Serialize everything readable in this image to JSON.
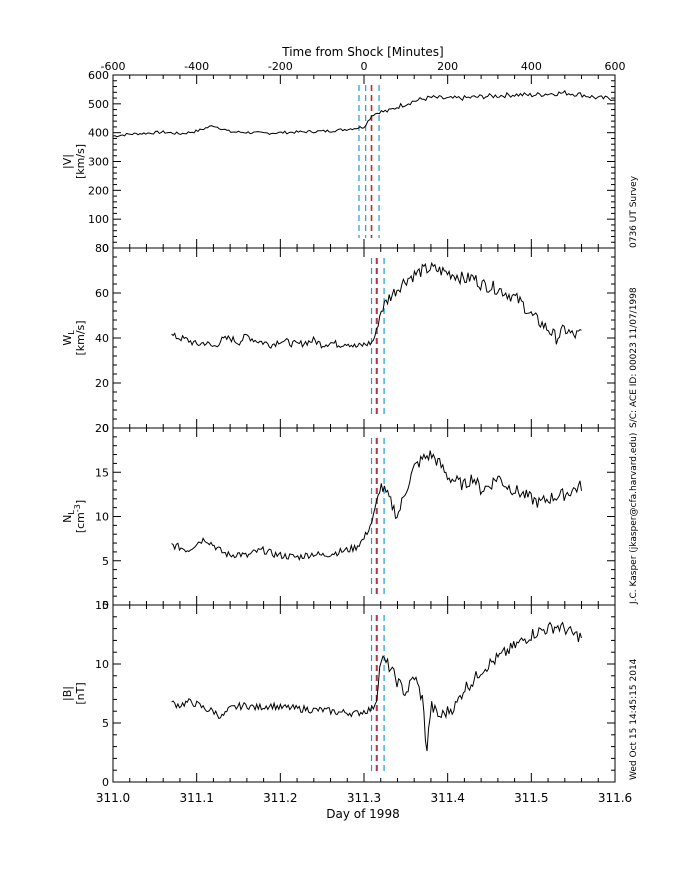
{
  "figure": {
    "top_axis_label": "Time from Shock [Minutes]",
    "bottom_axis_label": "Day of 1998",
    "right_annotation_1": "0736 UT Survey",
    "right_annotation_2": "S/C: ACE ID: 00023 11/07/1998",
    "right_annotation_3": "J.C. Kasper (jkasper@cfa.harvard.edu)",
    "right_annotation_4": "Wed Oct 15 14:45:15 2014"
  },
  "chart_data": [
    {
      "type": "line",
      "panel": "speed",
      "ylabel_line1": "|V|",
      "ylabel_line2": "[km/s]",
      "xlim": [
        311.0,
        311.6
      ],
      "ylim": [
        0,
        600
      ],
      "yticks": [
        0,
        100,
        200,
        300,
        400,
        500,
        600
      ],
      "top_ticks": [
        -600,
        -400,
        -200,
        0,
        200,
        400,
        600
      ],
      "vlines": [
        {
          "x": 311.294,
          "color": "#1f9bd7"
        },
        {
          "x": 311.302,
          "color": "#1f9bd7"
        },
        {
          "x": 311.309,
          "color": "#d42020"
        },
        {
          "x": 311.318,
          "color": "#1f9bd7"
        }
      ],
      "x": [
        311.0,
        311.02,
        311.04,
        311.06,
        311.08,
        311.1,
        311.12,
        311.14,
        311.16,
        311.18,
        311.2,
        311.22,
        311.24,
        311.26,
        311.28,
        311.3,
        311.31,
        311.32,
        311.33,
        311.34,
        311.36,
        311.38,
        311.4,
        311.42,
        311.44,
        311.46,
        311.48,
        311.5,
        311.52,
        311.54,
        311.56,
        311.58,
        311.6
      ],
      "values": [
        388,
        395,
        398,
        402,
        396,
        405,
        425,
        403,
        401,
        398,
        400,
        402,
        404,
        406,
        412,
        420,
        462,
        472,
        475,
        490,
        510,
        522,
        518,
        520,
        525,
        528,
        532,
        530,
        535,
        538,
        532,
        520,
        518
      ]
    },
    {
      "type": "line",
      "panel": "thermal",
      "ylabel_line1": "W",
      "ylabel_sub": "L",
      "ylabel_line2": "[km/s]",
      "xlim": [
        311.0,
        311.6
      ],
      "ylim": [
        0,
        80
      ],
      "yticks": [
        0,
        20,
        40,
        60,
        80
      ],
      "vlines": [
        {
          "x": 311.309,
          "color": "#1f9bd7"
        },
        {
          "x": 311.315,
          "color": "#d42020"
        },
        {
          "x": 311.316,
          "color": "#1f9bd7"
        },
        {
          "x": 311.324,
          "color": "#1f9bd7"
        }
      ],
      "x": [
        311.07,
        311.08,
        311.09,
        311.1,
        311.11,
        311.12,
        311.13,
        311.14,
        311.15,
        311.16,
        311.17,
        311.18,
        311.19,
        311.2,
        311.21,
        311.22,
        311.23,
        311.24,
        311.25,
        311.26,
        311.27,
        311.28,
        311.29,
        311.3,
        311.31,
        311.315,
        311.32,
        311.33,
        311.34,
        311.35,
        311.36,
        311.37,
        311.38,
        311.39,
        311.4,
        311.41,
        311.42,
        311.43,
        311.44,
        311.45,
        311.46,
        311.47,
        311.48,
        311.49,
        311.5,
        311.51,
        311.52,
        311.53,
        311.54,
        311.55,
        311.56
      ],
      "values": [
        41,
        40,
        39,
        37,
        38,
        36,
        39,
        40,
        38,
        41,
        39,
        38,
        37,
        39,
        38,
        37,
        38,
        39,
        37,
        38,
        37,
        38,
        36,
        37,
        38,
        43,
        52,
        58,
        62,
        66,
        68,
        70,
        71,
        70,
        69,
        68,
        66,
        67,
        64,
        63,
        62,
        60,
        58,
        55,
        50,
        47,
        44,
        40,
        44,
        41,
        42
      ]
    },
    {
      "type": "line",
      "panel": "density",
      "ylabel_line1": "N",
      "ylabel_sub": "L",
      "ylabel_line2": "[cm",
      "ylabel_sup": "-3",
      "ylabel_line2_end": "]",
      "xlim": [
        311.0,
        311.6
      ],
      "ylim": [
        0,
        20
      ],
      "yticks": [
        0,
        5,
        10,
        15,
        20
      ],
      "vlines": [
        {
          "x": 311.309,
          "color": "#1f9bd7"
        },
        {
          "x": 311.315,
          "color": "#d42020"
        },
        {
          "x": 311.316,
          "color": "#1f9bd7"
        },
        {
          "x": 311.324,
          "color": "#1f9bd7"
        }
      ],
      "x": [
        311.07,
        311.08,
        311.09,
        311.1,
        311.11,
        311.12,
        311.13,
        311.14,
        311.15,
        311.16,
        311.17,
        311.18,
        311.19,
        311.2,
        311.21,
        311.22,
        311.23,
        311.24,
        311.25,
        311.26,
        311.27,
        311.28,
        311.29,
        311.3,
        311.31,
        311.315,
        311.32,
        311.33,
        311.34,
        311.35,
        311.36,
        311.37,
        311.38,
        311.39,
        311.4,
        311.41,
        311.42,
        311.43,
        311.44,
        311.45,
        311.46,
        311.47,
        311.48,
        311.49,
        311.5,
        311.51,
        311.52,
        311.53,
        311.54,
        311.55,
        311.56
      ],
      "values": [
        6.8,
        6.5,
        6.2,
        7.0,
        7.5,
        6.8,
        6.0,
        5.6,
        5.8,
        5.5,
        6.0,
        6.2,
        5.8,
        5.6,
        5.5,
        5.4,
        5.6,
        5.8,
        5.6,
        5.8,
        6.0,
        6.2,
        6.5,
        7.5,
        9.5,
        11.5,
        13.5,
        12.0,
        10.0,
        13.0,
        15.5,
        16.5,
        17.0,
        16.0,
        14.5,
        14.0,
        13.5,
        14.5,
        13.0,
        13.5,
        14.5,
        13.5,
        13.0,
        12.5,
        12.0,
        11.5,
        12.0,
        12.3,
        12.5,
        13.0,
        13.5
      ]
    },
    {
      "type": "line",
      "panel": "field",
      "ylabel_line1": "|B|",
      "ylabel_line2": "[nT]",
      "xlim": [
        311.0,
        311.6
      ],
      "ylim": [
        0,
        15
      ],
      "yticks": [
        0,
        5,
        10,
        15
      ],
      "xticks": [
        311.0,
        311.1,
        311.2,
        311.3,
        311.4,
        311.5,
        311.6
      ],
      "xticklabels": [
        "311.0",
        "311.1",
        "311.2",
        "311.3",
        "311.4",
        "311.5",
        "311.6"
      ],
      "vlines": [
        {
          "x": 311.309,
          "color": "#1f9bd7"
        },
        {
          "x": 311.315,
          "color": "#d42020"
        },
        {
          "x": 311.316,
          "color": "#1f9bd7"
        },
        {
          "x": 311.324,
          "color": "#1f9bd7"
        }
      ],
      "x": [
        311.07,
        311.08,
        311.09,
        311.1,
        311.11,
        311.12,
        311.13,
        311.14,
        311.15,
        311.16,
        311.17,
        311.18,
        311.19,
        311.2,
        311.21,
        311.22,
        311.23,
        311.24,
        311.25,
        311.26,
        311.27,
        311.28,
        311.29,
        311.3,
        311.31,
        311.315,
        311.32,
        311.33,
        311.34,
        311.35,
        311.36,
        311.37,
        311.375,
        311.38,
        311.39,
        311.4,
        311.41,
        311.42,
        311.43,
        311.44,
        311.45,
        311.46,
        311.47,
        311.48,
        311.49,
        311.5,
        311.51,
        311.52,
        311.53,
        311.54,
        311.55,
        311.56
      ],
      "values": [
        6.7,
        6.5,
        6.8,
        6.6,
        6.2,
        6.0,
        5.5,
        6.2,
        6.4,
        6.5,
        6.3,
        6.4,
        6.5,
        6.3,
        6.3,
        6.2,
        6.2,
        6.1,
        6.1,
        6.0,
        5.9,
        5.9,
        5.8,
        6.0,
        6.2,
        7.0,
        10.5,
        9.8,
        8.5,
        7.5,
        9.0,
        7.0,
        2.5,
        6.5,
        5.5,
        6.0,
        6.5,
        8.0,
        8.5,
        9.5,
        10.0,
        10.5,
        11.0,
        11.5,
        12.0,
        12.5,
        12.8,
        13.0,
        13.2,
        13.0,
        12.5,
        12.3
      ]
    }
  ]
}
